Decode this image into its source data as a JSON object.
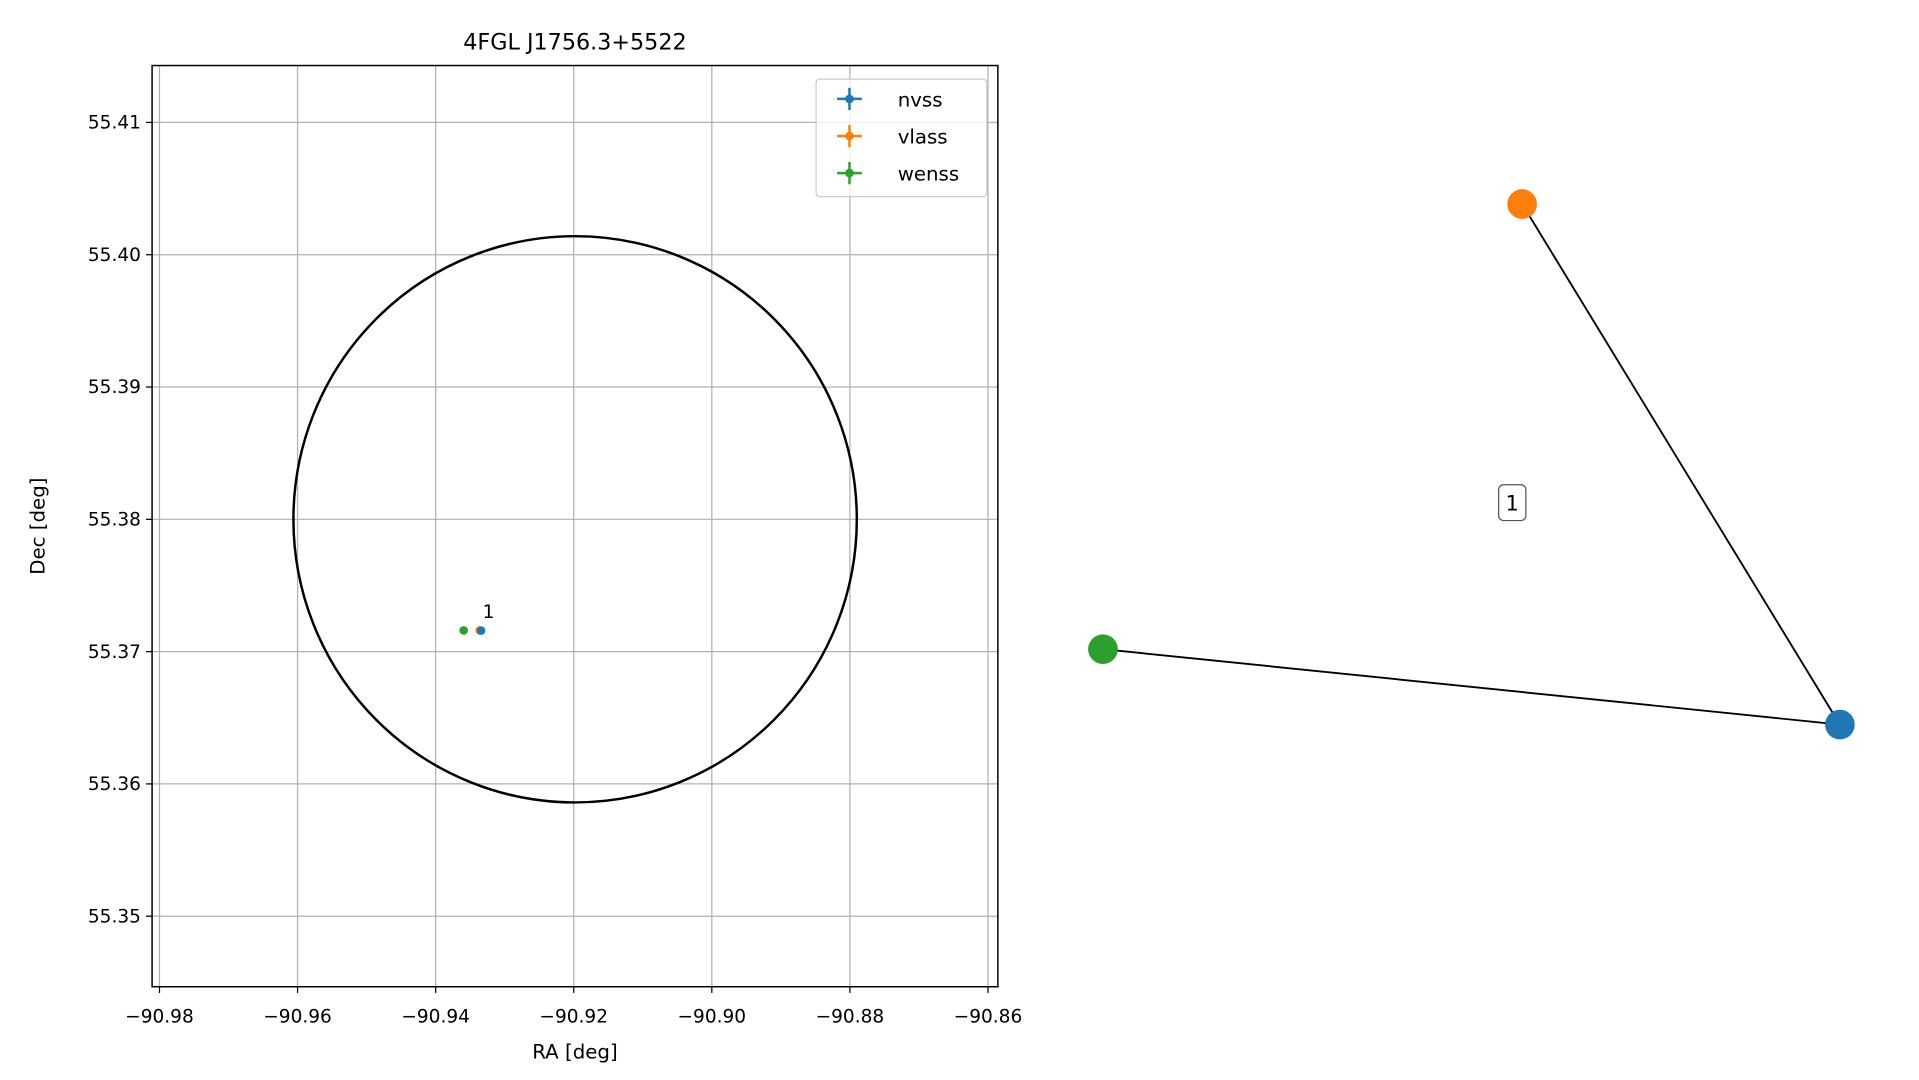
{
  "chart_data": [
    {
      "type": "scatter",
      "title": "4FGL J1756.3+5522",
      "x_label": "RA [deg]",
      "y_label": "Dec [deg]",
      "xlim": [
        -90.98107,
        -90.85857
      ],
      "ylim": [
        55.34467,
        55.4143
      ],
      "xticks": [
        {
          "value": -90.98,
          "label": "−90.98"
        },
        {
          "value": -90.96,
          "label": "−90.96"
        },
        {
          "value": -90.94,
          "label": "−90.94"
        },
        {
          "value": -90.92,
          "label": "−90.92"
        },
        {
          "value": -90.9,
          "label": "−90.90"
        },
        {
          "value": -90.88,
          "label": "−90.88"
        },
        {
          "value": -90.86,
          "label": "−90.86"
        }
      ],
      "yticks": [
        55.35,
        55.36,
        55.37,
        55.38,
        55.39,
        {
          "value": 55.4,
          "label": "55.40"
        },
        55.41
      ],
      "grid": true,
      "legend": "upper right",
      "series": [
        {
          "name": "nvss",
          "color": "#1f77b4",
          "x": [
            -90.93343
          ],
          "values": [
            55.37159
          ]
        },
        {
          "name": "vlass",
          "color": "#ff7f0e",
          "x": [
            -90.93361
          ],
          "values": [
            55.3716
          ]
        },
        {
          "name": "wenss",
          "color": "#2ca02c",
          "x": [
            -90.93594
          ],
          "values": [
            55.3716
          ]
        }
      ],
      "ellipse": {
        "ra": -90.9198,
        "dec": 55.38,
        "ra_radius": 0.0408,
        "dec_radius": 0.0214,
        "color": "#000000"
      },
      "annotation": {
        "text": "1",
        "x": -90.9332,
        "y": 55.373
      }
    },
    {
      "type": "network",
      "nodes": [
        {
          "color": "#1f77b4"
        },
        {
          "color": "#ff7f0e"
        },
        {
          "color": "#2ca02c"
        }
      ],
      "edges": [
        [
          1,
          0
        ],
        [
          2,
          0
        ]
      ],
      "label": "1"
    }
  ]
}
